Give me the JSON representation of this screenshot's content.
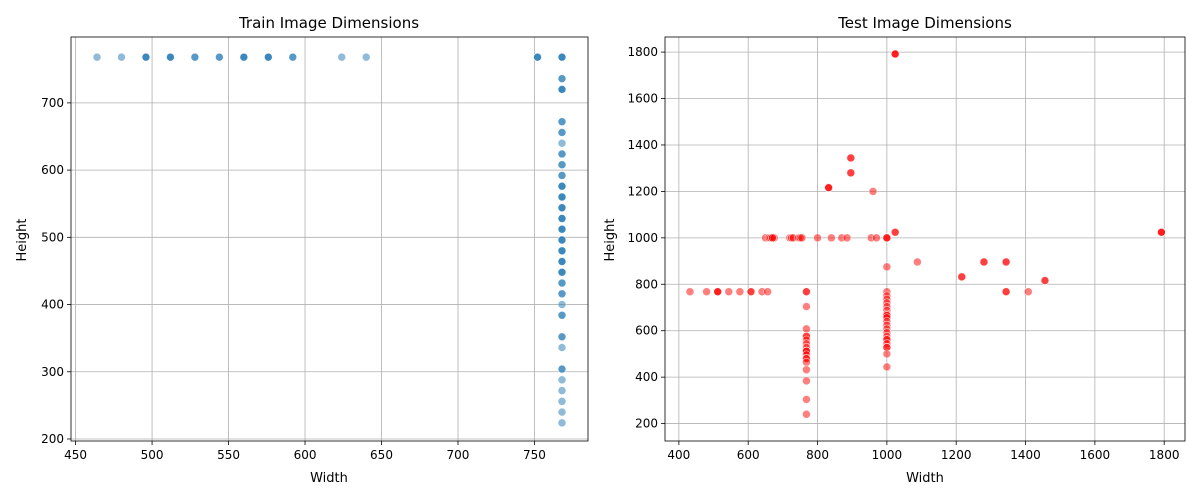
{
  "chart_data": [
    {
      "type": "scatter",
      "title": "Train Image Dimensions",
      "xlabel": "Width",
      "ylabel": "Height",
      "xlim": [
        447,
        785
      ],
      "ylim": [
        197,
        798
      ],
      "xticks": [
        450,
        500,
        550,
        600,
        650,
        700,
        750
      ],
      "yticks": [
        200,
        300,
        400,
        500,
        600,
        700
      ],
      "grid": true,
      "color": "#1f77b4",
      "opacity": 0.5,
      "series": [
        {
          "points": [
            [
              464,
              768
            ],
            [
              480,
              768
            ],
            [
              496,
              768
            ],
            [
              496,
              768
            ],
            [
              496,
              768
            ],
            [
              512,
              768
            ],
            [
              512,
              768
            ],
            [
              512,
              768
            ],
            [
              528,
              768
            ],
            [
              528,
              768
            ],
            [
              544,
              768
            ],
            [
              544,
              768
            ],
            [
              560,
              768
            ],
            [
              560,
              768
            ],
            [
              560,
              768
            ],
            [
              576,
              768
            ],
            [
              576,
              768
            ],
            [
              576,
              768
            ],
            [
              592,
              768
            ],
            [
              592,
              768
            ],
            [
              624,
              768
            ],
            [
              640,
              768
            ],
            [
              752,
              768
            ],
            [
              752,
              768
            ],
            [
              752,
              768
            ],
            [
              768,
              768
            ],
            [
              768,
              768
            ],
            [
              768,
              768
            ],
            [
              768,
              736
            ],
            [
              768,
              736
            ],
            [
              768,
              720
            ],
            [
              768,
              720
            ],
            [
              768,
              720
            ],
            [
              768,
              672
            ],
            [
              768,
              672
            ],
            [
              768,
              656
            ],
            [
              768,
              656
            ],
            [
              768,
              640
            ],
            [
              768,
              624
            ],
            [
              768,
              624
            ],
            [
              768,
              608
            ],
            [
              768,
              608
            ],
            [
              768,
              592
            ],
            [
              768,
              592
            ],
            [
              768,
              576
            ],
            [
              768,
              576
            ],
            [
              768,
              576
            ],
            [
              768,
              560
            ],
            [
              768,
              560
            ],
            [
              768,
              560
            ],
            [
              768,
              544
            ],
            [
              768,
              544
            ],
            [
              768,
              544
            ],
            [
              768,
              528
            ],
            [
              768,
              528
            ],
            [
              768,
              528
            ],
            [
              768,
              512
            ],
            [
              768,
              512
            ],
            [
              768,
              512
            ],
            [
              768,
              496
            ],
            [
              768,
              496
            ],
            [
              768,
              496
            ],
            [
              768,
              480
            ],
            [
              768,
              480
            ],
            [
              768,
              480
            ],
            [
              768,
              464
            ],
            [
              768,
              464
            ],
            [
              768,
              464
            ],
            [
              768,
              448
            ],
            [
              768,
              448
            ],
            [
              768,
              448
            ],
            [
              768,
              432
            ],
            [
              768,
              432
            ],
            [
              768,
              416
            ],
            [
              768,
              416
            ],
            [
              768,
              400
            ],
            [
              768,
              384
            ],
            [
              768,
              384
            ],
            [
              768,
              352
            ],
            [
              768,
              352
            ],
            [
              768,
              336
            ],
            [
              768,
              304
            ],
            [
              768,
              304
            ],
            [
              768,
              288
            ],
            [
              768,
              272
            ],
            [
              768,
              256
            ],
            [
              768,
              240
            ],
            [
              768,
              224
            ]
          ]
        }
      ]
    },
    {
      "type": "scatter",
      "title": "Test Image Dimensions",
      "xlabel": "Width",
      "ylabel": "Height",
      "xlim": [
        360,
        1860
      ],
      "ylim": [
        125,
        1865
      ],
      "xticks": [
        400,
        600,
        800,
        1000,
        1200,
        1400,
        1600,
        1800
      ],
      "yticks": [
        200,
        400,
        600,
        800,
        1000,
        1200,
        1400,
        1600,
        1800
      ],
      "grid": true,
      "color": "#ff0000",
      "opacity": 0.5,
      "series": [
        {
          "points": [
            [
              1024,
              1792
            ],
            [
              1024,
              1792
            ],
            [
              1024,
              1792
            ],
            [
              896,
              1344
            ],
            [
              896,
              1344
            ],
            [
              896,
              1280
            ],
            [
              896,
              1280
            ],
            [
              832,
              1216
            ],
            [
              832,
              1216
            ],
            [
              832,
              1216
            ],
            [
              960,
              1200
            ],
            [
              1024,
              1024
            ],
            [
              1024,
              1024
            ],
            [
              1792,
              1024
            ],
            [
              1792,
              1024
            ],
            [
              1792,
              1024
            ],
            [
              650,
              1000
            ],
            [
              660,
              1000
            ],
            [
              665,
              1000
            ],
            [
              670,
              1000
            ],
            [
              675,
              1000
            ],
            [
              670,
              1000
            ],
            [
              720,
              1000
            ],
            [
              725,
              1000
            ],
            [
              730,
              1000
            ],
            [
              745,
              1000
            ],
            [
              750,
              1000
            ],
            [
              755,
              1000
            ],
            [
              800,
              1000
            ],
            [
              840,
              1000
            ],
            [
              870,
              1000
            ],
            [
              885,
              1000
            ],
            [
              955,
              1000
            ],
            [
              970,
              1000
            ],
            [
              1000,
              1000
            ],
            [
              1000,
              1000
            ],
            [
              1000,
              1000
            ],
            [
              1000,
              875
            ],
            [
              1088,
              896
            ],
            [
              1280,
              896
            ],
            [
              1280,
              896
            ],
            [
              1344,
              896
            ],
            [
              1344,
              896
            ],
            [
              1216,
              832
            ],
            [
              1216,
              832
            ],
            [
              1456,
              816
            ],
            [
              1456,
              816
            ],
            [
              432,
              768
            ],
            [
              480,
              768
            ],
            [
              512,
              768
            ],
            [
              512,
              768
            ],
            [
              512,
              768
            ],
            [
              544,
              768
            ],
            [
              576,
              768
            ],
            [
              608,
              768
            ],
            [
              608,
              768
            ],
            [
              640,
              768
            ],
            [
              656,
              768
            ],
            [
              768,
              768
            ],
            [
              768,
              768
            ],
            [
              1344,
              768
            ],
            [
              1344,
              768
            ],
            [
              1408,
              768
            ],
            [
              1000,
              768
            ],
            [
              1000,
              750
            ],
            [
              1000,
              736
            ],
            [
              1000,
              720
            ],
            [
              1000,
              704
            ],
            [
              1000,
              688
            ],
            [
              1000,
              672
            ],
            [
              1000,
              666
            ],
            [
              1000,
              666
            ],
            [
              1000,
              656
            ],
            [
              1000,
              640
            ],
            [
              1000,
              624
            ],
            [
              1000,
              608
            ],
            [
              1000,
              592
            ],
            [
              1000,
              576
            ],
            [
              1000,
              562
            ],
            [
              1000,
              562
            ],
            [
              1000,
              544
            ],
            [
              1000,
              528
            ],
            [
              1000,
              528
            ],
            [
              1000,
              500
            ],
            [
              1000,
              444
            ],
            [
              768,
              704
            ],
            [
              768,
              608
            ],
            [
              768,
              576
            ],
            [
              768,
              576
            ],
            [
              768,
              560
            ],
            [
              768,
              544
            ],
            [
              768,
              528
            ],
            [
              768,
              512
            ],
            [
              768,
              512
            ],
            [
              768,
              512
            ],
            [
              768,
              496
            ],
            [
              768,
              480
            ],
            [
              768,
              480
            ],
            [
              768,
              464
            ],
            [
              768,
              432
            ],
            [
              768,
              384
            ],
            [
              768,
              304
            ],
            [
              768,
              240
            ]
          ]
        }
      ]
    }
  ]
}
